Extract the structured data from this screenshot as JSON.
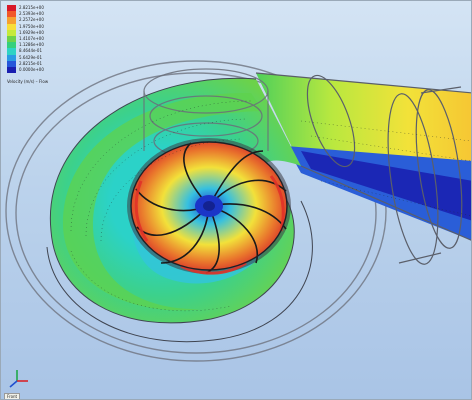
{
  "legend": {
    "values": [
      "2.8215e+00",
      "2.5393e+00",
      "2.2572e+00",
      "1.9750e+00",
      "1.6929e+00",
      "1.4107e+00",
      "1.1286e+00",
      "8.4644e-01",
      "5.6429e-01",
      "2.8215e-01",
      "0.0000e+00"
    ],
    "colors": [
      "#d8182a",
      "#f1572a",
      "#f6a031",
      "#f8de39",
      "#c6ea3c",
      "#6fd24a",
      "#35d07c",
      "#2fd3c4",
      "#2b9be3",
      "#2556da",
      "#1a1fb0"
    ],
    "caption": "Velocity (m/s) – Flow"
  },
  "status_label": "Front",
  "colors": {
    "background_top": "#d4e4f4",
    "background_bottom": "#a9c4e6",
    "housing_outline": "#6f7480"
  }
}
